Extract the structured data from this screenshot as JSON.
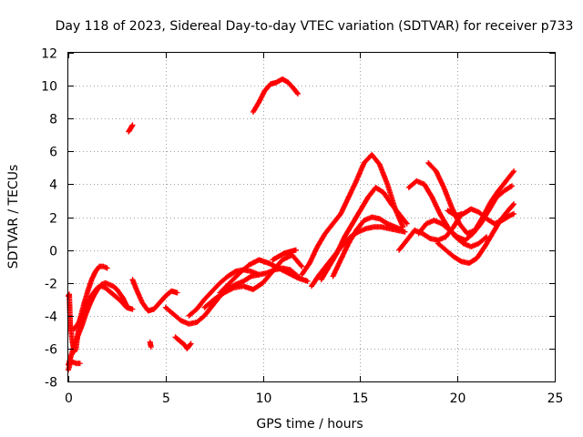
{
  "chart_data": {
    "type": "scatter",
    "title": "Day 118 of 2023, Sidereal Day-to-day VTEC variation (SDTVAR) for receiver p733",
    "xlabel": "GPS time / hours",
    "ylabel": "SDTVAR / TECUs",
    "xlim": [
      0,
      25
    ],
    "ylim": [
      -8,
      12
    ],
    "xticks": [
      "0",
      "5",
      "10",
      "15",
      "20",
      "25"
    ],
    "yticks": [
      "-8",
      "-6",
      "-4",
      "-2",
      "0",
      "2",
      "4",
      "6",
      "8",
      "10",
      "12"
    ],
    "marker": "plus",
    "color": "#ff0000",
    "grid": true,
    "series": [
      {
        "name": "s1",
        "x": [
          0.0,
          0.05,
          0.1,
          0.2,
          0.3,
          0.4,
          0.5,
          0.6,
          0.8,
          1.0,
          1.2,
          1.4,
          1.6,
          1.8,
          2.0
        ],
        "y": [
          -2.8,
          -2.7,
          -4.5,
          -5.5,
          -6.2,
          -6.0,
          -5.0,
          -4.2,
          -3.3,
          -2.5,
          -1.8,
          -1.3,
          -1.0,
          -1.0,
          -1.1
        ]
      },
      {
        "name": "s2",
        "x": [
          0.0,
          0.1,
          0.3,
          0.5,
          0.7,
          0.9,
          1.1,
          1.3,
          1.5,
          1.7,
          1.9,
          2.1,
          2.3,
          2.5,
          2.8,
          3.0
        ],
        "y": [
          -7.0,
          -6.6,
          -5.8,
          -5.2,
          -4.6,
          -3.9,
          -3.3,
          -2.8,
          -2.4,
          -2.1,
          -2.0,
          -2.1,
          -2.2,
          -2.4,
          -2.9,
          -3.4
        ]
      },
      {
        "name": "s3",
        "x": [
          0.3,
          0.5,
          0.7,
          0.9,
          1.1,
          1.3,
          1.5,
          1.7,
          1.9,
          2.1,
          2.4,
          2.7,
          3.0,
          3.3
        ],
        "y": [
          -4.8,
          -4.5,
          -4.0,
          -3.5,
          -3.0,
          -2.6,
          -2.3,
          -2.2,
          -2.3,
          -2.5,
          -2.8,
          -3.1,
          -3.5,
          -3.6
        ]
      },
      {
        "name": "s4",
        "x": [
          0.0,
          0.1,
          0.2,
          0.4,
          0.6
        ],
        "y": [
          -7.3,
          -6.9,
          -6.8,
          -6.9,
          -6.9
        ]
      },
      {
        "name": "s5",
        "x": [
          3.1,
          3.15,
          3.2,
          3.25,
          3.3
        ],
        "y": [
          7.2,
          7.3,
          7.4,
          7.5,
          7.6
        ]
      },
      {
        "name": "s6",
        "x": [
          3.3,
          3.5,
          3.8,
          4.1,
          4.4,
          4.7,
          5.0,
          5.3,
          5.6
        ],
        "y": [
          -1.8,
          -2.4,
          -3.2,
          -3.7,
          -3.6,
          -3.2,
          -2.8,
          -2.5,
          -2.6
        ]
      },
      {
        "name": "s7",
        "x": [
          4.2,
          4.25
        ],
        "y": [
          -5.6,
          -5.9
        ]
      },
      {
        "name": "s8",
        "x": [
          5.0,
          5.4,
          5.8,
          6.2,
          6.6,
          7.0,
          7.4,
          7.8,
          8.2,
          8.6,
          9.0,
          9.4,
          9.8
        ],
        "y": [
          -3.5,
          -3.9,
          -4.3,
          -4.5,
          -4.4,
          -4.0,
          -3.4,
          -2.8,
          -2.4,
          -2.1,
          -1.9,
          -1.6,
          -1.5
        ]
      },
      {
        "name": "s9",
        "x": [
          5.5,
          5.8,
          6.0,
          6.1,
          6.3
        ],
        "y": [
          -5.3,
          -5.6,
          -5.8,
          -6.0,
          -5.7
        ]
      },
      {
        "name": "s10",
        "x": [
          6.2,
          6.6,
          7.0,
          7.4,
          7.8,
          8.2,
          8.6,
          9.0,
          9.4,
          9.8,
          10.2,
          10.6,
          11.0,
          11.4,
          11.8
        ],
        "y": [
          -4.0,
          -3.6,
          -3.0,
          -2.5,
          -2.0,
          -1.6,
          -1.3,
          -1.2,
          -1.3,
          -1.5,
          -1.4,
          -1.2,
          -1.1,
          -1.2,
          -1.6
        ]
      },
      {
        "name": "s11",
        "x": [
          7.0,
          7.5,
          8.0,
          8.5,
          9.0,
          9.5,
          10.0,
          10.5,
          11.0,
          11.5,
          12.0
        ],
        "y": [
          -3.5,
          -3.0,
          -2.6,
          -2.3,
          -2.2,
          -2.4,
          -2.0,
          -1.3,
          -0.6,
          -0.3,
          -1.0
        ]
      },
      {
        "name": "s12",
        "x": [
          7.8,
          8.3,
          8.8,
          9.3,
          9.8,
          10.3,
          10.8,
          11.3,
          11.8,
          12.3
        ],
        "y": [
          -2.6,
          -2.0,
          -1.4,
          -0.9,
          -0.6,
          -0.8,
          -1.1,
          -1.4,
          -1.7,
          -1.9
        ]
      },
      {
        "name": "s13",
        "x": [
          9.5,
          9.8,
          10.1,
          10.4,
          10.7,
          11.0,
          11.3,
          11.6,
          11.8
        ],
        "y": [
          8.4,
          9.0,
          9.7,
          10.1,
          10.2,
          10.4,
          10.2,
          9.8,
          9.5
        ]
      },
      {
        "name": "s14",
        "x": [
          10.5,
          10.8,
          11.1,
          11.4,
          11.7
        ],
        "y": [
          -0.6,
          -0.4,
          -0.2,
          -0.1,
          0.0
        ]
      },
      {
        "name": "s15",
        "x": [
          12.0,
          12.4,
          12.8,
          13.2,
          13.6,
          14.0,
          14.4,
          14.8,
          15.2,
          15.6,
          16.0,
          16.4,
          16.8,
          17.2
        ],
        "y": [
          -1.5,
          -0.8,
          0.2,
          1.0,
          1.6,
          2.2,
          3.2,
          4.2,
          5.3,
          5.8,
          5.2,
          4.0,
          2.5,
          1.4
        ]
      },
      {
        "name": "s16",
        "x": [
          12.5,
          12.9,
          13.3,
          13.7,
          14.1,
          14.5,
          14.9,
          15.3,
          15.7,
          16.1,
          16.5,
          16.9,
          17.3
        ],
        "y": [
          -2.2,
          -1.5,
          -0.9,
          -0.3,
          0.3,
          0.8,
          1.1,
          1.3,
          1.4,
          1.4,
          1.3,
          1.2,
          1.1
        ]
      },
      {
        "name": "s17",
        "x": [
          13.0,
          13.4,
          13.8,
          14.2,
          14.6,
          15.0,
          15.4,
          15.8,
          16.2,
          16.6,
          17.0,
          17.4
        ],
        "y": [
          -1.8,
          -1.0,
          -0.2,
          0.8,
          1.6,
          2.4,
          3.2,
          3.8,
          3.5,
          2.8,
          2.2,
          1.6
        ]
      },
      {
        "name": "s18",
        "x": [
          13.6,
          14.0,
          14.4,
          14.8,
          15.2,
          15.6,
          16.0,
          16.4,
          16.8,
          17.2
        ],
        "y": [
          -1.6,
          -0.6,
          0.4,
          1.2,
          1.8,
          2.0,
          1.9,
          1.6,
          1.4,
          1.2
        ]
      },
      {
        "name": "s19",
        "x": [
          17.0,
          17.4,
          17.8,
          18.2,
          18.6,
          19.0,
          19.4,
          19.8,
          20.2
        ],
        "y": [
          0.0,
          0.6,
          1.2,
          1.0,
          0.7,
          0.6,
          0.8,
          1.4,
          2.2
        ]
      },
      {
        "name": "s20",
        "x": [
          17.5,
          17.9,
          18.3,
          18.7,
          19.1,
          19.5,
          19.9,
          20.3,
          20.7,
          21.1,
          21.5
        ],
        "y": [
          3.8,
          4.2,
          4.0,
          3.2,
          2.2,
          1.4,
          0.8,
          0.4,
          0.2,
          0.4,
          0.8
        ]
      },
      {
        "name": "s21",
        "x": [
          18.5,
          18.9,
          19.3,
          19.7,
          20.1,
          20.5,
          20.9,
          21.3,
          21.7,
          22.1,
          22.5,
          22.9
        ],
        "y": [
          5.3,
          4.8,
          3.8,
          2.6,
          1.6,
          1.0,
          1.2,
          2.0,
          2.9,
          3.6,
          4.2,
          4.8
        ]
      },
      {
        "name": "s22",
        "x": [
          18.0,
          18.4,
          18.8,
          19.2,
          19.6,
          20.0,
          20.4,
          20.8,
          21.2,
          21.6,
          22.0,
          22.4,
          22.8
        ],
        "y": [
          1.0,
          1.6,
          1.8,
          1.6,
          1.2,
          0.8,
          0.6,
          1.0,
          1.6,
          2.4,
          3.2,
          3.6,
          3.9
        ]
      },
      {
        "name": "s23",
        "x": [
          19.0,
          19.4,
          19.8,
          20.2,
          20.6,
          21.0,
          21.4,
          21.8,
          22.2,
          22.6,
          22.9
        ],
        "y": [
          0.4,
          0.0,
          -0.4,
          -0.7,
          -0.8,
          -0.5,
          0.2,
          1.0,
          1.8,
          2.4,
          2.8
        ]
      },
      {
        "name": "s24",
        "x": [
          19.5,
          19.9,
          20.3,
          20.7,
          21.1,
          21.5,
          21.9,
          22.3,
          22.7,
          22.9
        ],
        "y": [
          2.4,
          2.1,
          2.2,
          2.5,
          2.3,
          1.9,
          1.6,
          1.8,
          2.1,
          2.2
        ]
      }
    ]
  }
}
